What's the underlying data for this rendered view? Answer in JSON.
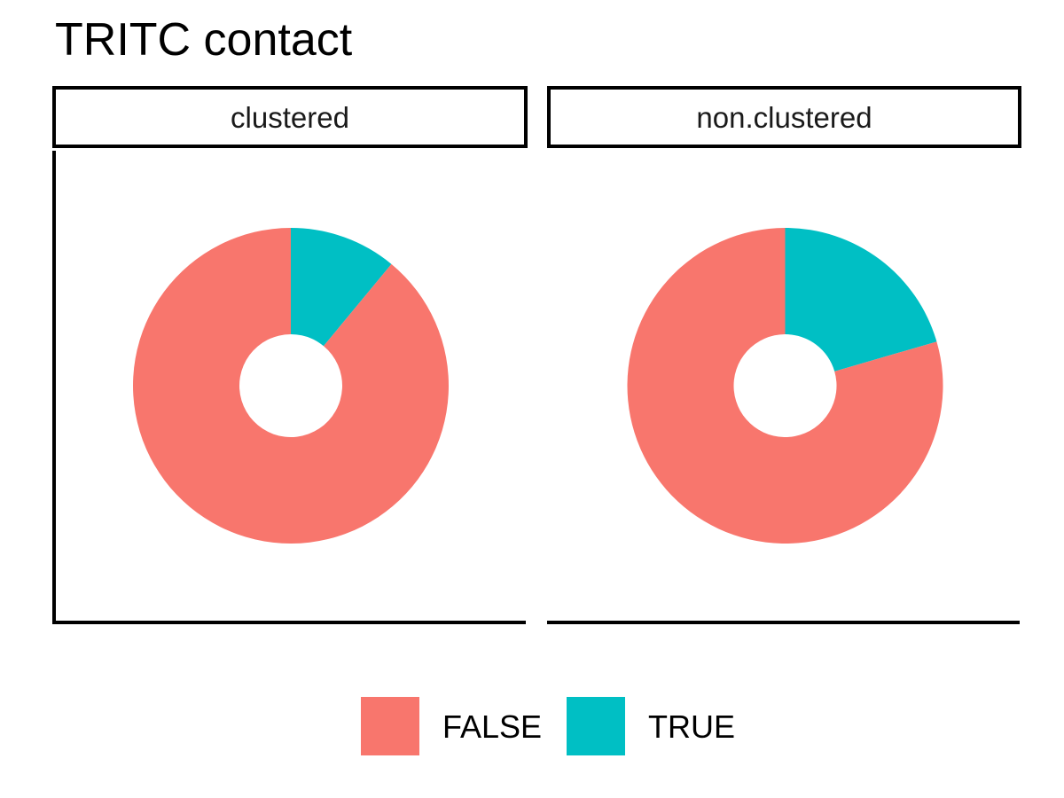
{
  "chart_data": {
    "type": "pie",
    "variant": "donut",
    "title": "TRITC contact",
    "colors": {
      "FALSE": "#F8766D",
      "TRUE": "#00BFC4"
    },
    "legend": {
      "placement": "bottom",
      "entries": [
        "FALSE",
        "TRUE"
      ]
    },
    "panels": [
      {
        "label": "clustered",
        "slices": [
          {
            "category": "TRUE",
            "value": 0.11
          },
          {
            "category": "FALSE",
            "value": 0.89
          }
        ]
      },
      {
        "label": "non.clustered",
        "slices": [
          {
            "category": "TRUE",
            "value": 0.205
          },
          {
            "category": "FALSE",
            "value": 0.795
          }
        ]
      }
    ]
  }
}
